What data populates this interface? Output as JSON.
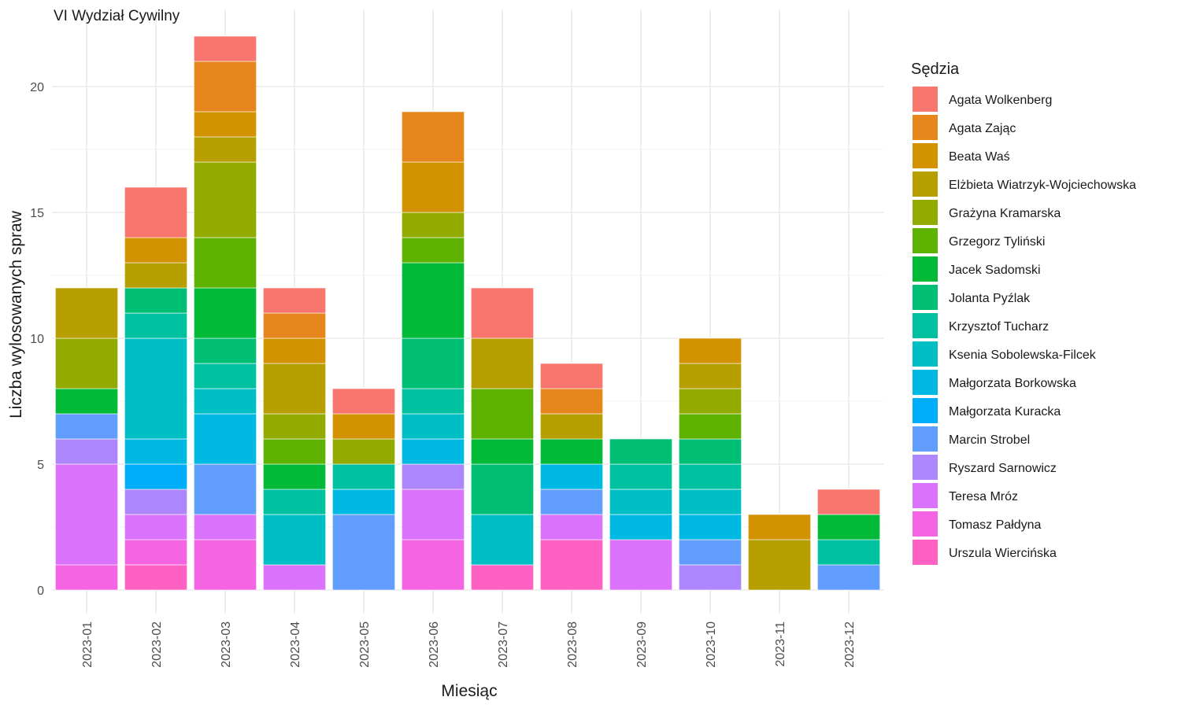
{
  "chart_data": {
    "type": "bar",
    "stacked": true,
    "title": "VI Wydział Cywilny",
    "xlabel": "Miesiąc",
    "ylabel": "Liczba wylosowanych spraw",
    "ylim": [
      0,
      22
    ],
    "yticks": [
      0,
      5,
      10,
      15,
      20
    ],
    "grid": true,
    "legend_title": "Sędzia",
    "legend_position": "right",
    "categories": [
      "2023-01",
      "2023-02",
      "2023-03",
      "2023-04",
      "2023-05",
      "2023-06",
      "2023-07",
      "2023-08",
      "2023-09",
      "2023-10",
      "2023-11",
      "2023-12"
    ],
    "series": [
      {
        "name": "Agata Wolkenberg",
        "color": "#F8766D",
        "values": [
          0,
          2,
          1,
          1,
          1,
          0,
          2,
          1,
          0,
          0,
          0,
          1
        ]
      },
      {
        "name": "Agata Zając",
        "color": "#E7861B",
        "values": [
          0,
          0,
          2,
          1,
          0,
          2,
          0,
          1,
          0,
          0,
          0,
          0
        ]
      },
      {
        "name": "Beata Waś",
        "color": "#D39200",
        "values": [
          0,
          1,
          1,
          1,
          1,
          2,
          0,
          0,
          0,
          1,
          1,
          0
        ]
      },
      {
        "name": "Elżbieta Wiatrzyk-Wojciechowska",
        "color": "#B79F00",
        "values": [
          2,
          1,
          1,
          2,
          0,
          0,
          2,
          1,
          0,
          1,
          2,
          0
        ]
      },
      {
        "name": "Grażyna Kramarska",
        "color": "#93AA00",
        "values": [
          2,
          0,
          3,
          1,
          1,
          1,
          0,
          0,
          0,
          1,
          0,
          0
        ]
      },
      {
        "name": "Grzegorz Tyliński",
        "color": "#5EB300",
        "values": [
          0,
          0,
          2,
          1,
          0,
          1,
          2,
          0,
          0,
          1,
          0,
          0
        ]
      },
      {
        "name": "Jacek Sadomski",
        "color": "#00BA38",
        "values": [
          1,
          0,
          2,
          1,
          0,
          3,
          1,
          1,
          0,
          0,
          0,
          1
        ]
      },
      {
        "name": "Jolanta Pyźlak",
        "color": "#00BF74",
        "values": [
          0,
          1,
          1,
          0,
          0,
          2,
          2,
          0,
          1,
          1,
          0,
          0
        ]
      },
      {
        "name": "Krzysztof Tucharz",
        "color": "#00C19F",
        "values": [
          0,
          1,
          1,
          1,
          1,
          1,
          0,
          0,
          1,
          1,
          0,
          1
        ]
      },
      {
        "name": "Ksenia Sobolewska-Filcek",
        "color": "#00BFC4",
        "values": [
          0,
          4,
          1,
          2,
          0,
          1,
          2,
          0,
          1,
          1,
          0,
          0
        ]
      },
      {
        "name": "Małgorzata Borkowska",
        "color": "#00B9E3",
        "values": [
          0,
          1,
          2,
          0,
          1,
          1,
          0,
          1,
          1,
          1,
          0,
          0
        ]
      },
      {
        "name": "Małgorzata Kuracka",
        "color": "#00ADFA",
        "values": [
          0,
          1,
          0,
          0,
          0,
          0,
          0,
          0,
          0,
          0,
          0,
          0
        ]
      },
      {
        "name": "Marcin Strobel",
        "color": "#619CFF",
        "values": [
          1,
          0,
          2,
          0,
          3,
          0,
          0,
          1,
          0,
          1,
          0,
          1
        ]
      },
      {
        "name": "Ryszard Sarnowicz",
        "color": "#AE87FF",
        "values": [
          1,
          1,
          0,
          0,
          0,
          1,
          0,
          0,
          0,
          1,
          0,
          0
        ]
      },
      {
        "name": "Teresa Mróz",
        "color": "#DB72FB",
        "values": [
          4,
          1,
          1,
          1,
          0,
          2,
          0,
          1,
          2,
          0,
          0,
          0
        ]
      },
      {
        "name": "Tomasz Pałdyna",
        "color": "#F564E3",
        "values": [
          1,
          1,
          2,
          0,
          0,
          2,
          0,
          0,
          0,
          0,
          0,
          0
        ]
      },
      {
        "name": "Urszula Wiercińska",
        "color": "#FF61C3",
        "values": [
          0,
          1,
          0,
          0,
          0,
          0,
          1,
          2,
          0,
          0,
          0,
          0
        ]
      }
    ]
  }
}
